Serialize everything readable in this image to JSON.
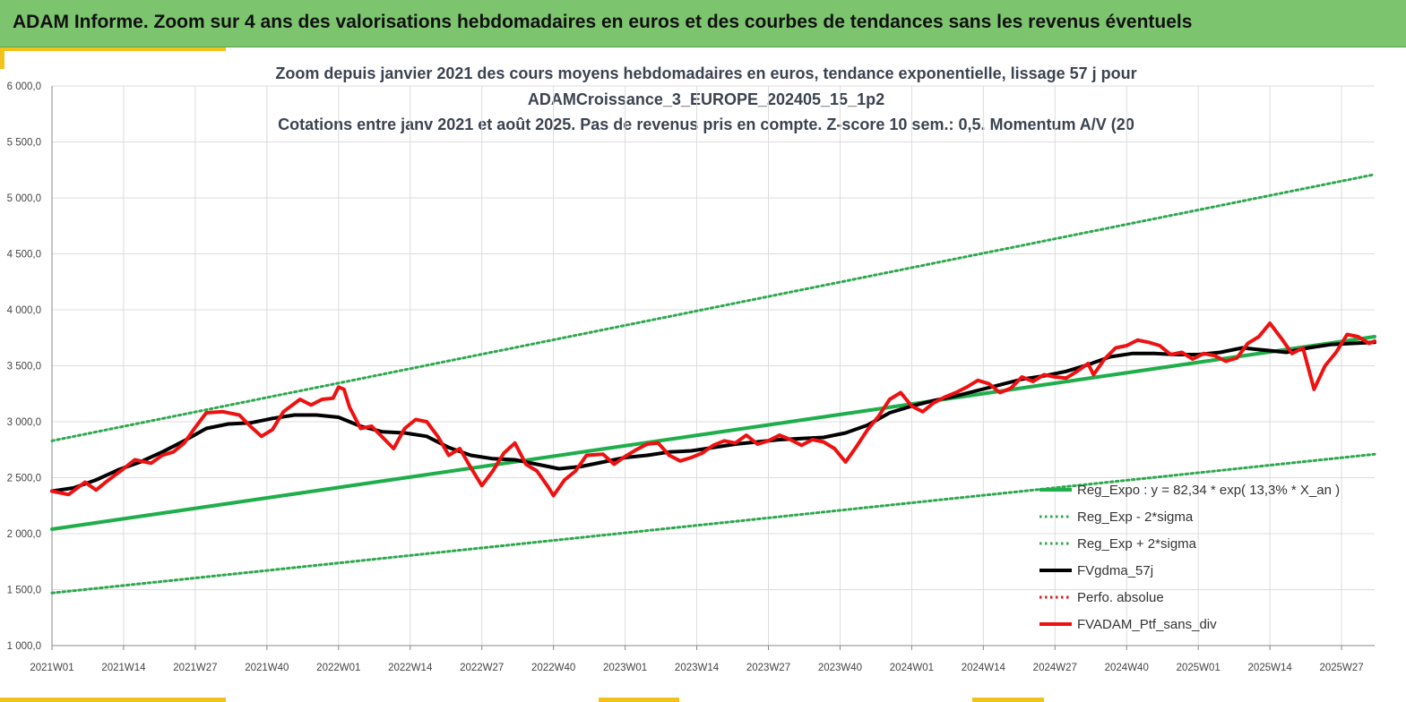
{
  "header": {
    "title": "ADAM Informe. Zoom sur 4 ans des valorisations hebdomadaires en euros et des courbes de tendances sans les revenus éventuels"
  },
  "colors": {
    "banner": "#7dc46f",
    "accent": "#f2c21b",
    "trend": "#1fae4b",
    "sigma": "#2ea84e",
    "smooth": "#000000",
    "perfo": "#e31a1c",
    "portfolio": "#ee1111"
  },
  "chart_data": {
    "type": "line",
    "title_lines": [
      "Zoom depuis janvier 2021 des cours moyens hebdomadaires  en euros, tendance exponentielle, lissage 57 j pour",
      "ADAMCroissance_3_EUROPE_202405_15_1p2",
      "Cotations  entre janv 2021 et août 2025. Pas de revenus pris en compte. Z-score 10 sem.: 0,5. Momentum A/V (20"
    ],
    "xlabel": "",
    "ylabel": "",
    "x_unit": "week index (0 = 2021W01)",
    "x_range": [
      0,
      240
    ],
    "x_ticks": [
      {
        "i": 0,
        "label": "2021W01"
      },
      {
        "i": 13,
        "label": "2021W14"
      },
      {
        "i": 26,
        "label": "2021W27"
      },
      {
        "i": 39,
        "label": "2021W40"
      },
      {
        "i": 52,
        "label": "2022W01"
      },
      {
        "i": 65,
        "label": "2022W14"
      },
      {
        "i": 78,
        "label": "2022W27"
      },
      {
        "i": 91,
        "label": "2022W40"
      },
      {
        "i": 104,
        "label": "2023W01"
      },
      {
        "i": 117,
        "label": "2023W14"
      },
      {
        "i": 130,
        "label": "2023W27"
      },
      {
        "i": 143,
        "label": "2023W40"
      },
      {
        "i": 156,
        "label": "2024W01"
      },
      {
        "i": 169,
        "label": "2024W14"
      },
      {
        "i": 182,
        "label": "2024W27"
      },
      {
        "i": 195,
        "label": "2024W40"
      },
      {
        "i": 208,
        "label": "2025W01"
      },
      {
        "i": 221,
        "label": "2025W14"
      },
      {
        "i": 234,
        "label": "2025W27"
      }
    ],
    "ylim": [
      1000,
      6000
    ],
    "y_ticks": [
      {
        "v": 1000,
        "label": "1 000,0"
      },
      {
        "v": 1500,
        "label": "1 500,0"
      },
      {
        "v": 2000,
        "label": "2 000,0"
      },
      {
        "v": 2500,
        "label": "2 500,0"
      },
      {
        "v": 3000,
        "label": "3 000,0"
      },
      {
        "v": 3500,
        "label": "3 500,0"
      },
      {
        "v": 4000,
        "label": "4 000,0"
      },
      {
        "v": 4500,
        "label": "4 500,0"
      },
      {
        "v": 5000,
        "label": "5 000,0"
      },
      {
        "v": 5500,
        "label": "5 500,0"
      },
      {
        "v": 6000,
        "label": "6 000,0"
      }
    ],
    "grid": true,
    "legend_position": "bottom-right",
    "series": [
      {
        "name": "Reg_Expo : y = 82,34 * exp( 13,3% *  X_an )",
        "style": "solid-thick",
        "color": "#1fae4b",
        "points": [
          [
            0,
            2040
          ],
          [
            240,
            3760
          ]
        ]
      },
      {
        "name": "Reg_Exp - 2*sigma",
        "style": "dotted",
        "color": "#2ea84e",
        "points": [
          [
            0,
            1470
          ],
          [
            240,
            2710
          ]
        ]
      },
      {
        "name": "Reg_Exp + 2*sigma",
        "style": "dotted",
        "color": "#2ea84e",
        "points": [
          [
            0,
            2830
          ],
          [
            240,
            5210
          ]
        ]
      },
      {
        "name": "FVgdma_57j",
        "style": "solid-thick",
        "color": "#000000",
        "points": [
          [
            0,
            2380
          ],
          [
            4,
            2410
          ],
          [
            8,
            2480
          ],
          [
            12,
            2570
          ],
          [
            16,
            2640
          ],
          [
            20,
            2730
          ],
          [
            24,
            2830
          ],
          [
            28,
            2940
          ],
          [
            32,
            2980
          ],
          [
            36,
            2990
          ],
          [
            40,
            3030
          ],
          [
            44,
            3060
          ],
          [
            48,
            3060
          ],
          [
            52,
            3040
          ],
          [
            56,
            2960
          ],
          [
            60,
            2910
          ],
          [
            64,
            2900
          ],
          [
            68,
            2870
          ],
          [
            72,
            2770
          ],
          [
            76,
            2700
          ],
          [
            80,
            2670
          ],
          [
            84,
            2660
          ],
          [
            88,
            2620
          ],
          [
            92,
            2580
          ],
          [
            96,
            2600
          ],
          [
            100,
            2640
          ],
          [
            104,
            2680
          ],
          [
            108,
            2700
          ],
          [
            112,
            2730
          ],
          [
            116,
            2740
          ],
          [
            120,
            2770
          ],
          [
            124,
            2800
          ],
          [
            128,
            2820
          ],
          [
            132,
            2840
          ],
          [
            136,
            2850
          ],
          [
            140,
            2860
          ],
          [
            144,
            2900
          ],
          [
            148,
            2970
          ],
          [
            152,
            3080
          ],
          [
            156,
            3140
          ],
          [
            160,
            3190
          ],
          [
            164,
            3230
          ],
          [
            168,
            3280
          ],
          [
            172,
            3330
          ],
          [
            176,
            3380
          ],
          [
            180,
            3410
          ],
          [
            184,
            3450
          ],
          [
            188,
            3510
          ],
          [
            192,
            3580
          ],
          [
            196,
            3610
          ],
          [
            200,
            3610
          ],
          [
            204,
            3600
          ],
          [
            208,
            3600
          ],
          [
            212,
            3620
          ],
          [
            216,
            3660
          ],
          [
            220,
            3640
          ],
          [
            224,
            3620
          ],
          [
            228,
            3660
          ],
          [
            232,
            3690
          ],
          [
            236,
            3700
          ],
          [
            240,
            3710
          ]
        ]
      },
      {
        "name": "Perfo. absolue",
        "style": "dotted",
        "color": "#e31a1c",
        "points": []
      },
      {
        "name": "FVADAM_Ptf_sans_div",
        "style": "solid-thick",
        "color": "#ee1111",
        "points": [
          [
            0,
            2380
          ],
          [
            3,
            2350
          ],
          [
            6,
            2460
          ],
          [
            8,
            2390
          ],
          [
            10,
            2470
          ],
          [
            13,
            2580
          ],
          [
            15,
            2660
          ],
          [
            18,
            2630
          ],
          [
            20,
            2700
          ],
          [
            22,
            2730
          ],
          [
            24,
            2810
          ],
          [
            26,
            2950
          ],
          [
            28,
            3080
          ],
          [
            31,
            3090
          ],
          [
            34,
            3060
          ],
          [
            36,
            2960
          ],
          [
            38,
            2870
          ],
          [
            40,
            2930
          ],
          [
            42,
            3090
          ],
          [
            45,
            3200
          ],
          [
            47,
            3150
          ],
          [
            49,
            3200
          ],
          [
            51,
            3210
          ],
          [
            52,
            3310
          ],
          [
            53,
            3290
          ],
          [
            54,
            3130
          ],
          [
            56,
            2940
          ],
          [
            58,
            2960
          ],
          [
            60,
            2860
          ],
          [
            62,
            2760
          ],
          [
            64,
            2940
          ],
          [
            66,
            3020
          ],
          [
            68,
            3000
          ],
          [
            70,
            2870
          ],
          [
            72,
            2700
          ],
          [
            74,
            2760
          ],
          [
            76,
            2590
          ],
          [
            78,
            2430
          ],
          [
            80,
            2560
          ],
          [
            82,
            2720
          ],
          [
            84,
            2810
          ],
          [
            86,
            2620
          ],
          [
            88,
            2560
          ],
          [
            90,
            2420
          ],
          [
            91,
            2340
          ],
          [
            93,
            2480
          ],
          [
            95,
            2560
          ],
          [
            97,
            2700
          ],
          [
            100,
            2710
          ],
          [
            102,
            2620
          ],
          [
            104,
            2690
          ],
          [
            106,
            2750
          ],
          [
            108,
            2800
          ],
          [
            110,
            2810
          ],
          [
            112,
            2700
          ],
          [
            114,
            2650
          ],
          [
            116,
            2680
          ],
          [
            118,
            2720
          ],
          [
            120,
            2790
          ],
          [
            122,
            2830
          ],
          [
            124,
            2810
          ],
          [
            126,
            2880
          ],
          [
            128,
            2800
          ],
          [
            130,
            2830
          ],
          [
            132,
            2880
          ],
          [
            134,
            2840
          ],
          [
            136,
            2790
          ],
          [
            138,
            2840
          ],
          [
            140,
            2820
          ],
          [
            142,
            2760
          ],
          [
            144,
            2640
          ],
          [
            146,
            2780
          ],
          [
            148,
            2930
          ],
          [
            150,
            3050
          ],
          [
            152,
            3200
          ],
          [
            154,
            3260
          ],
          [
            156,
            3140
          ],
          [
            158,
            3090
          ],
          [
            160,
            3170
          ],
          [
            162,
            3220
          ],
          [
            164,
            3260
          ],
          [
            166,
            3310
          ],
          [
            168,
            3370
          ],
          [
            170,
            3340
          ],
          [
            172,
            3260
          ],
          [
            174,
            3300
          ],
          [
            176,
            3400
          ],
          [
            178,
            3360
          ],
          [
            180,
            3420
          ],
          [
            182,
            3400
          ],
          [
            184,
            3390
          ],
          [
            186,
            3450
          ],
          [
            188,
            3520
          ],
          [
            189,
            3420
          ],
          [
            191,
            3560
          ],
          [
            193,
            3660
          ],
          [
            195,
            3680
          ],
          [
            197,
            3730
          ],
          [
            199,
            3710
          ],
          [
            201,
            3680
          ],
          [
            203,
            3600
          ],
          [
            205,
            3620
          ],
          [
            207,
            3560
          ],
          [
            209,
            3610
          ],
          [
            211,
            3590
          ],
          [
            213,
            3540
          ],
          [
            215,
            3570
          ],
          [
            217,
            3700
          ],
          [
            219,
            3760
          ],
          [
            221,
            3880
          ],
          [
            223,
            3750
          ],
          [
            225,
            3610
          ],
          [
            227,
            3660
          ],
          [
            229,
            3290
          ],
          [
            231,
            3500
          ],
          [
            233,
            3620
          ],
          [
            235,
            3780
          ],
          [
            237,
            3760
          ],
          [
            239,
            3700
          ],
          [
            240,
            3720
          ]
        ]
      }
    ]
  }
}
